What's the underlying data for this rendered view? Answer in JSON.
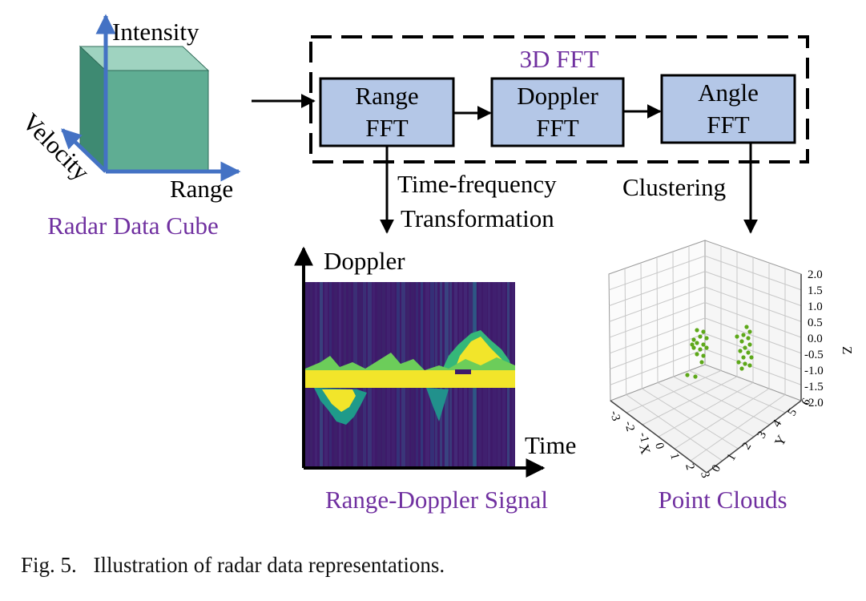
{
  "colors": {
    "purple_label": "#7030a0",
    "fft_box_fill": "#b4c7e7",
    "axis_blue": "#4472c4",
    "cube_front": "#5fad93",
    "cube_top": "#9fd3c0",
    "cube_side": "#3e8a72",
    "heatmap_bg": "#3e1a6a",
    "heatmap_peak": "#f2e52a",
    "point_green": "#5da819"
  },
  "cube": {
    "axis_intensity": "Intensity",
    "axis_velocity": "Velocity",
    "axis_range": "Range",
    "label": "Radar Data Cube"
  },
  "fft": {
    "group_label": "3D FFT",
    "boxes": [
      {
        "line1": "Range",
        "line2": "FFT"
      },
      {
        "line1": "Doppler",
        "line2": "FFT"
      },
      {
        "line1": "Angle",
        "line2": "FFT"
      }
    ]
  },
  "transforms": {
    "tf_line1": "Time-frequency",
    "tf_line2": "Transformation",
    "clustering": "Clustering"
  },
  "range_doppler": {
    "y_axis": "Doppler",
    "x_axis": "Time",
    "label": "Range-Doppler Signal"
  },
  "point_cloud": {
    "label": "Point Clouds",
    "z_title": "Z",
    "y_title": "Y",
    "x_title": "X",
    "z_ticks": [
      "2.0",
      "1.5",
      "1.0",
      "0.5",
      "0.0",
      "-0.5",
      "-1.0",
      "-1.5",
      "-2.0"
    ],
    "y_ticks": [
      "0",
      "1",
      "2",
      "3",
      "4",
      "5",
      "6"
    ],
    "x_ticks": [
      "-3",
      "-2",
      "-1",
      "0",
      "1",
      "2",
      "3"
    ]
  },
  "caption": {
    "number": "Fig. 5.",
    "text": "Illustration of radar data representations."
  }
}
